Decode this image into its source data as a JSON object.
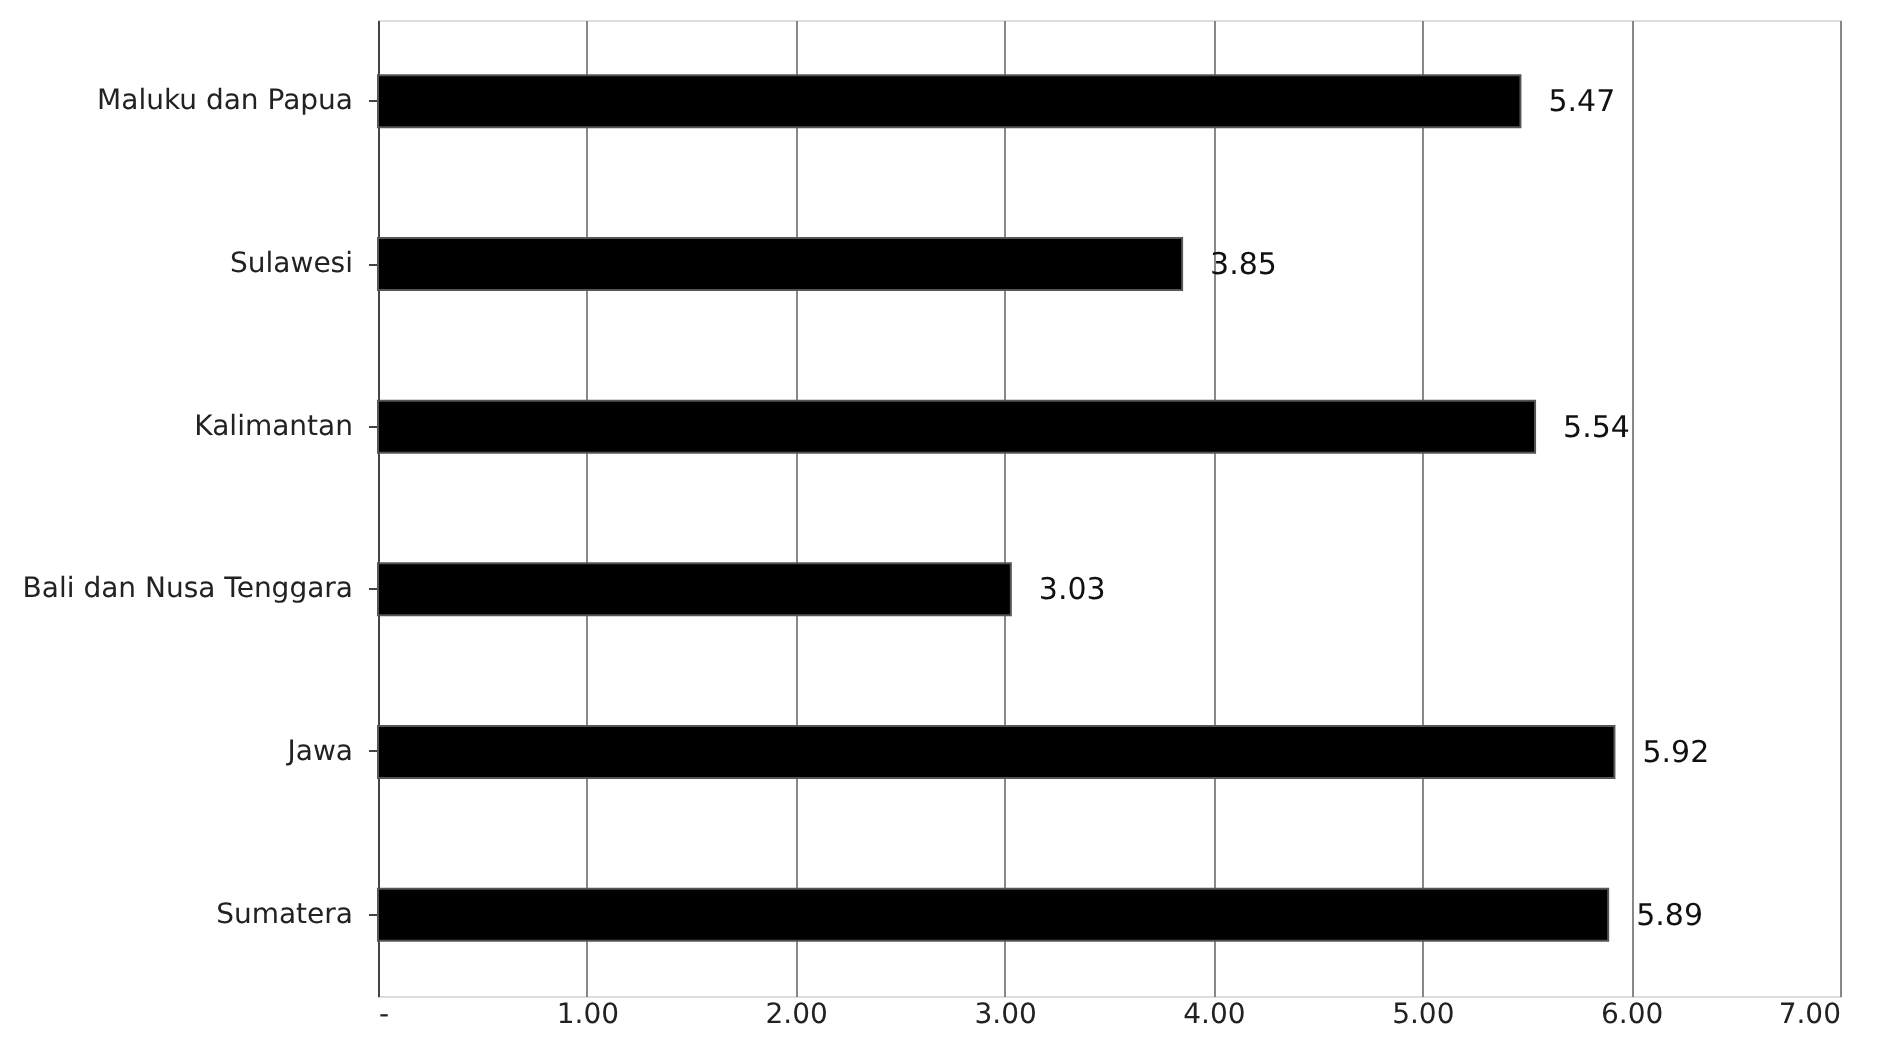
{
  "chart_data": {
    "type": "bar",
    "orientation": "horizontal",
    "categories": [
      "Maluku dan Papua",
      "Sulawesi",
      "Kalimantan",
      "Bali dan Nusa Tenggara",
      "Jawa",
      "Sumatera"
    ],
    "values": [
      5.47,
      3.85,
      5.54,
      3.03,
      5.92,
      5.89
    ],
    "color": "#000000",
    "xlim": [
      0,
      7
    ],
    "xticks": [
      {
        "value": 0,
        "label": "-"
      },
      {
        "value": 1,
        "label": "1.00"
      },
      {
        "value": 2,
        "label": "2.00"
      },
      {
        "value": 3,
        "label": "3.00"
      },
      {
        "value": 4,
        "label": "4.00"
      },
      {
        "value": 5,
        "label": "5.00"
      },
      {
        "value": 6,
        "label": "6.00"
      },
      {
        "value": 7,
        "label": "7.00"
      }
    ],
    "grid": "x",
    "data_labels": true
  }
}
